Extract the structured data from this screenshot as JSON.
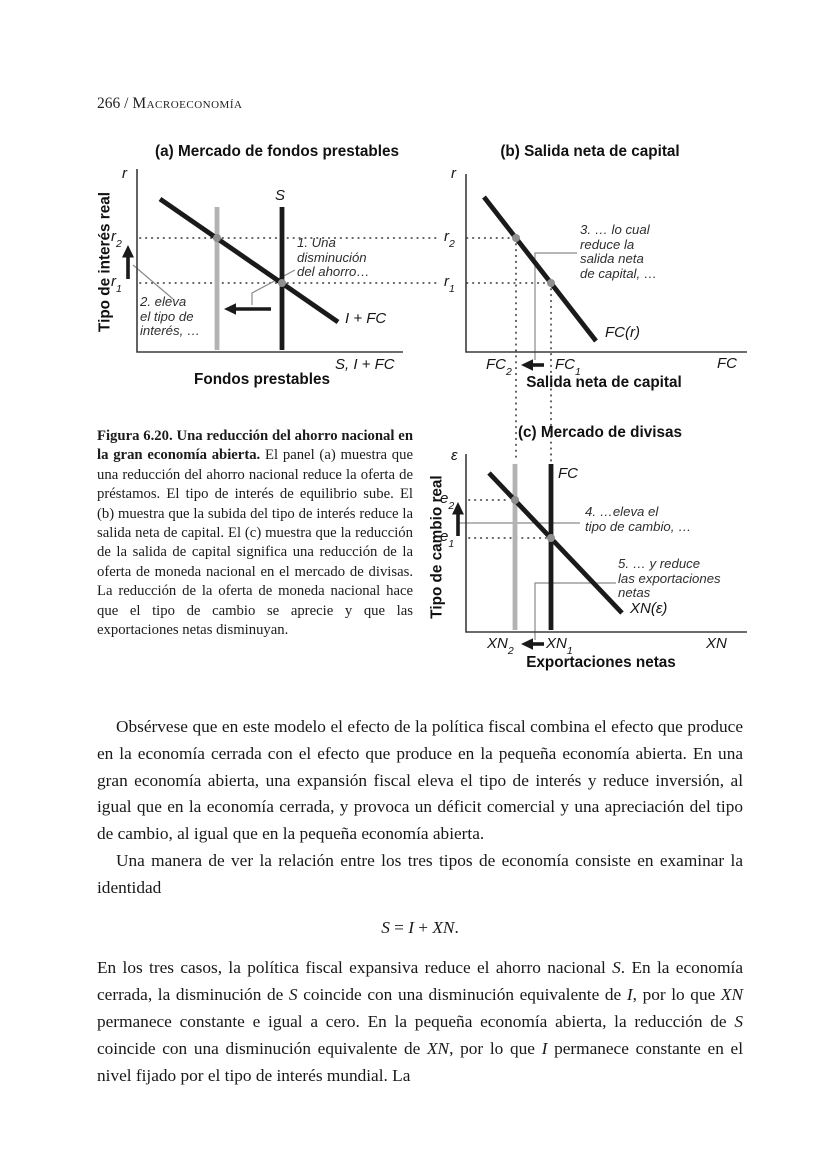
{
  "page": {
    "header_number": "266 / ",
    "header_title": "Macroeconomía"
  },
  "colors": {
    "ink": "#1a1a1a",
    "axis": "#3c3c3c",
    "shifted_line_gray": "#b3b3b3",
    "equilibrium_dot_gray": "#8f8f8f",
    "pointer_gray": "#8a8a8a"
  },
  "figure": {
    "panel_a": {
      "title": "(a) Mercado de fondos prestables",
      "y_axis_title": "Tipo de interés real",
      "x_axis_title": "Fondos prestables",
      "y_axis_var": "r",
      "tick_r2": {
        "base": "r",
        "sub": "2"
      },
      "tick_r1": {
        "base": "r",
        "sub": "1"
      },
      "supply_label": "S",
      "demand_label": "I + FC",
      "x_axis_var": "S, I + FC",
      "annotation_1": "1. Una\ndisminución\ndel ahorro…",
      "annotation_2": "2. eleva\nel tipo de\ninterés, …"
    },
    "panel_b": {
      "title": "(b) Salida neta de capital",
      "x_axis_title": "Salida neta de capital",
      "y_axis_var": "r",
      "tick_r2": {
        "base": "r",
        "sub": "2"
      },
      "tick_r1": {
        "base": "r",
        "sub": "1"
      },
      "curve_label": "FC(r)",
      "tick_fc2": {
        "base": "FC",
        "sub": "2"
      },
      "tick_fc1": {
        "base": "FC",
        "sub": "1"
      },
      "x_axis_var": "FC",
      "annotation_3": "3. … lo cual\nreduce la\nsalida neta\nde capital, …"
    },
    "panel_c": {
      "title": "(c) Mercado de divisas",
      "y_axis_title": "Tipo de cambio real",
      "x_axis_title": "Exportaciones netas",
      "y_axis_var": "ε",
      "tick_e2": {
        "base": "e",
        "sub": "2"
      },
      "tick_e1": {
        "base": "e",
        "sub": "1"
      },
      "fc_line_label": "FC",
      "curve_label": "XN(ε)",
      "tick_xn2": {
        "base": "XN",
        "sub": "2"
      },
      "tick_xn1": {
        "base": "XN",
        "sub": "1"
      },
      "x_axis_var": "XN",
      "annotation_4": "4. …eleva el\ntipo de cambio, …",
      "annotation_5": "5. … y reduce\nlas exportaciones\nnetas"
    }
  },
  "caption": {
    "segments": [
      {
        "t": "Figura 6.20. Una reducción del ahorro nacional en la gran economía abierta.",
        "b": true
      },
      {
        "t": " El panel (a) muestra que una reducción del ahorro nacional reduce la oferta de préstamos. El tipo de interés de equilibrio sube. El (b) muestra que la subida del tipo de interés reduce la salida neta de capital. El (c) muestra que la reducción de la salida de capital significa una reducción de la oferta de moneda nacional en el mercado de divisas. La reducción de la oferta de moneda nacional hace que el tipo de cambio se aprecie y que las exportaciones netas disminuyan."
      }
    ]
  },
  "body": {
    "p1": "Obsérvese que en este modelo el efecto de la política fiscal combina el efecto que produce en la economía cerrada con el efecto que produce en la pequeña economía abierta. En una gran economía abierta, una expansión fiscal eleva el tipo de interés y reduce inversión, al igual que en la economía cerrada, y provoca un déficit comercial y una apreciación del tipo de cambio, al igual que en la pequeña economía abierta.",
    "p2": "Una manera de ver la relación entre los tres tipos de economía consiste en examinar la identidad",
    "equation": [
      {
        "t": "S",
        "i": true
      },
      {
        "t": " = "
      },
      {
        "t": "I",
        "i": true
      },
      {
        "t": " + "
      },
      {
        "t": "XN",
        "i": true
      },
      {
        "t": "."
      }
    ],
    "p3_segments": [
      {
        "t": "En los tres casos, la política fiscal expansiva reduce el ahorro nacional "
      },
      {
        "t": "S",
        "i": true
      },
      {
        "t": ". En la economía cerrada, la disminución de "
      },
      {
        "t": "S",
        "i": true
      },
      {
        "t": " coincide con una disminución equivalente de "
      },
      {
        "t": "I",
        "i": true
      },
      {
        "t": ", por lo que "
      },
      {
        "t": "XN",
        "i": true
      },
      {
        "t": " permanece constante e igual a cero. En la pequeña economía abierta, la reducción de "
      },
      {
        "t": "S",
        "i": true
      },
      {
        "t": " coincide con una disminución equivalente de "
      },
      {
        "t": "XN",
        "i": true
      },
      {
        "t": ", por lo que "
      },
      {
        "t": "I",
        "i": true
      },
      {
        "t": " permanece constante en el nivel fijado por el tipo de interés mundial. La"
      }
    ]
  }
}
